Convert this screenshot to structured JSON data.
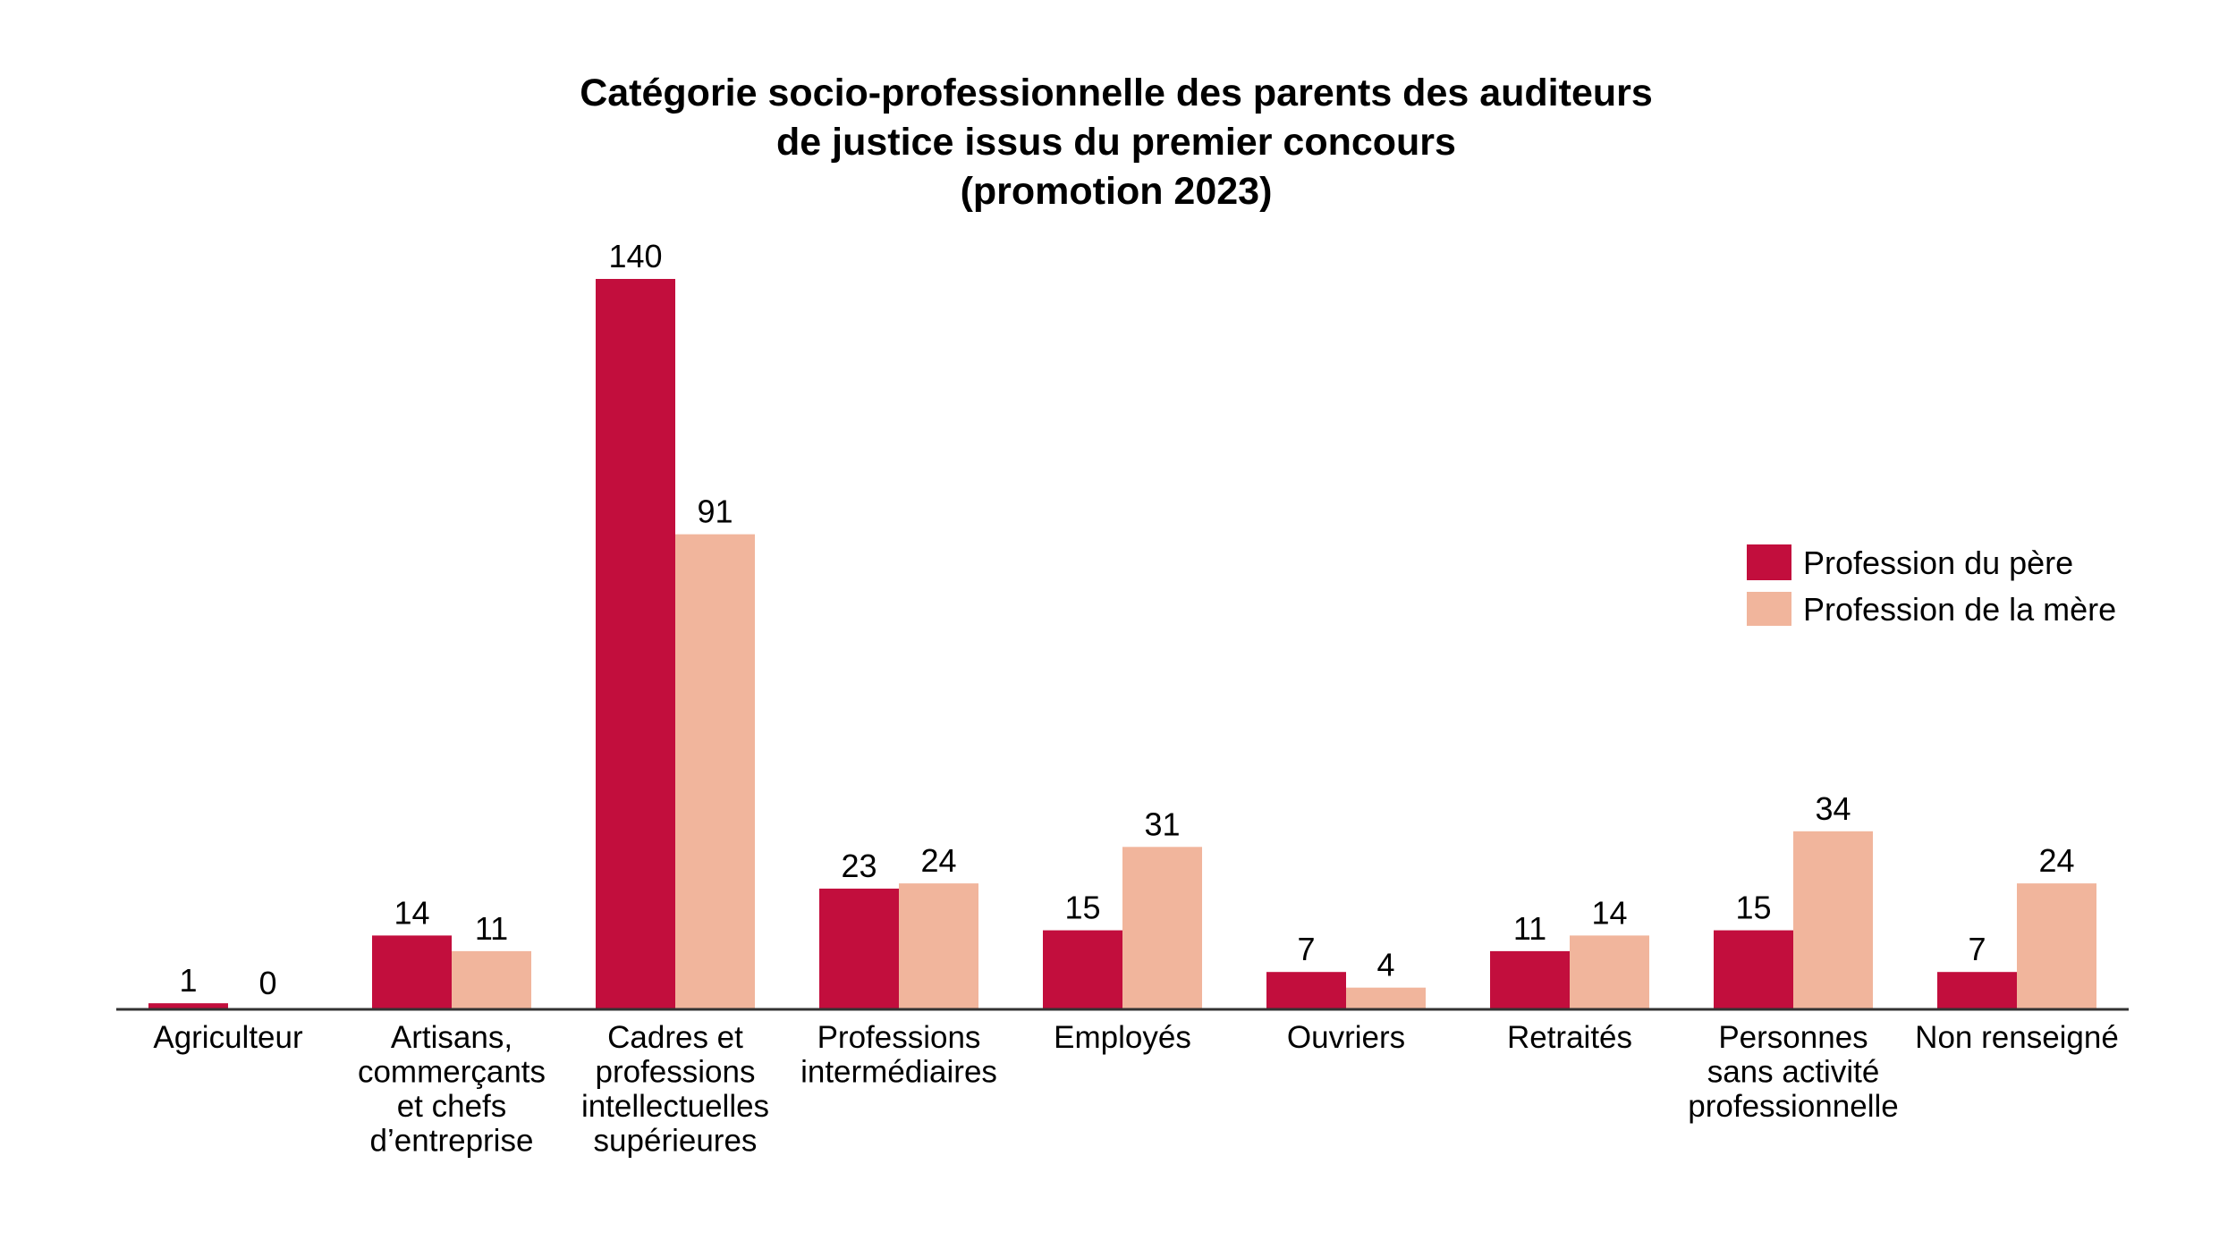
{
  "chart_data": {
    "type": "bar",
    "title": [
      "Catégorie socio-professionnelle des parents des auditeurs",
      "de justice issus du premier concours",
      "(promotion 2023)"
    ],
    "xlabel": "",
    "ylabel": "",
    "ylim": [
      0,
      140
    ],
    "grid": false,
    "legend_position": "right",
    "categories": [
      [
        "Agriculteur"
      ],
      [
        "Artisans,",
        "commerçants",
        "et chefs",
        "d’entreprise"
      ],
      [
        "Cadres et",
        "professions",
        "intellectuelles",
        "supérieures"
      ],
      [
        "Professions",
        "intermédiaires"
      ],
      [
        "Employés"
      ],
      [
        "Ouvriers"
      ],
      [
        "Retraités"
      ],
      [
        "Personnes",
        "sans activité",
        "professionnelle"
      ],
      [
        "Non renseigné"
      ]
    ],
    "series": [
      {
        "name": "Profession du père",
        "color": "#C20E3D",
        "values": [
          1,
          14,
          140,
          23,
          15,
          7,
          11,
          15,
          7
        ]
      },
      {
        "name": "Profession de la mère",
        "color": "#F1B59C",
        "values": [
          0,
          11,
          91,
          24,
          31,
          4,
          14,
          34,
          24
        ]
      }
    ],
    "data_labels": true,
    "axis_color": "#333333"
  }
}
